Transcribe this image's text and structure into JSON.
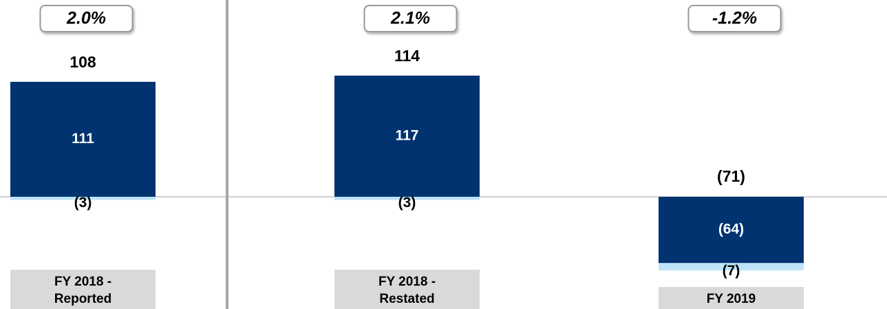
{
  "chart_data": {
    "type": "stacked-bar",
    "categories": [
      "FY 2018 - Reported",
      "FY 2018 - Restated",
      "FY 2019"
    ],
    "series": [
      {
        "color": "#003370",
        "values": [
          111,
          117,
          -64
        ],
        "value_labels": [
          "111",
          "117",
          "(64)"
        ]
      },
      {
        "color": "#bde4f8",
        "values": [
          -3,
          -3,
          -7
        ],
        "value_labels": [
          "(3)",
          "(3)",
          "(7)"
        ]
      }
    ],
    "totals": {
      "values": [
        108,
        114,
        -71
      ],
      "value_labels": [
        "108",
        "114",
        "(71)"
      ]
    },
    "annotations": [
      "2.0%",
      "2.1%",
      "-1.2%"
    ],
    "ylim": [
      -109,
      190
    ]
  }
}
